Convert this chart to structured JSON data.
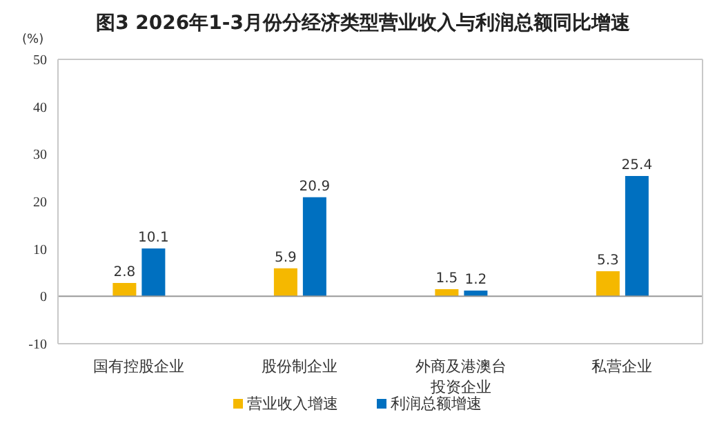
{
  "chart_data": {
    "type": "bar",
    "title": "图3 2026年1-3月份分经济类型营业收入与利润总额同比增速",
    "ylabel": "(%)",
    "categories": [
      "国有控股企业",
      "股份制企业",
      "外商及港澳台投资企业",
      "私营企业"
    ],
    "series": [
      {
        "name": "营业收入增速",
        "color": "#f5b800",
        "values": [
          2.8,
          5.9,
          1.5,
          5.3
        ]
      },
      {
        "name": "利润总额增速",
        "color": "#0070c0",
        "values": [
          10.1,
          20.9,
          1.2,
          25.4
        ]
      }
    ],
    "ylim": [
      -10,
      50
    ],
    "yticks": [
      -10,
      0,
      10,
      20,
      30,
      40,
      50
    ],
    "legend": "bottom",
    "data_labels": true
  }
}
